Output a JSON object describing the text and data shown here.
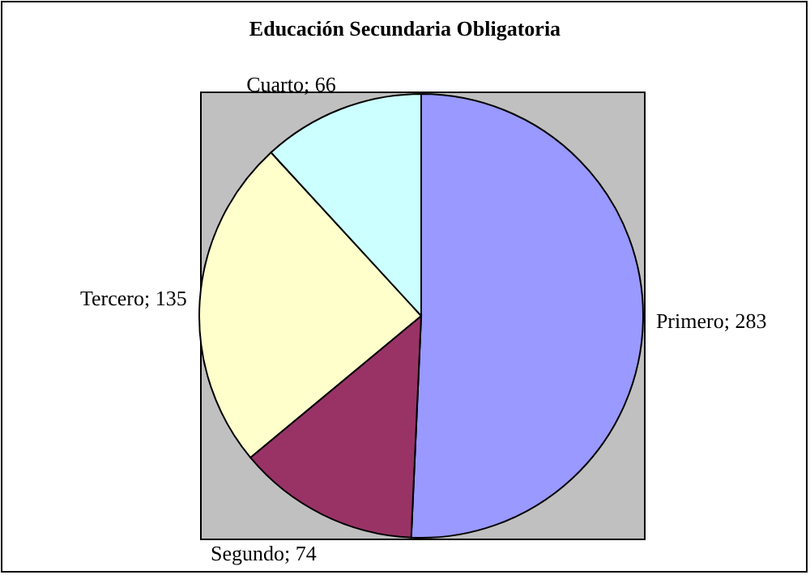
{
  "chart_data": {
    "type": "pie",
    "title": "Educación Secundaria Obligatoria",
    "categories": [
      "Primero",
      "Segundo",
      "Tercero",
      "Cuarto"
    ],
    "values": [
      283,
      74,
      135,
      66
    ],
    "value_labels": [
      "; 283",
      "; 74",
      "; 135",
      "; 66"
    ],
    "colors": [
      "#9999ff",
      "#993366",
      "#ffffcc",
      "#ccffff"
    ],
    "legend": false
  }
}
